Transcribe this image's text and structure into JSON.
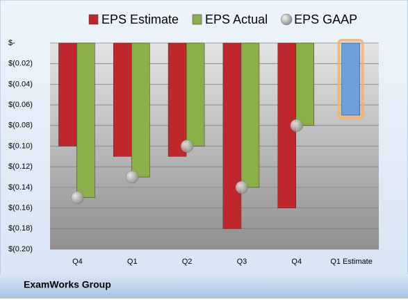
{
  "chart_data": {
    "type": "bar",
    "categories": [
      "Q4",
      "Q1",
      "Q2",
      "Q3",
      "Q4",
      "Q1 Estimate"
    ],
    "series": [
      {
        "name": "EPS Estimate",
        "color": "#c0272d",
        "point_colors": [
          "#c0272d",
          "#c0272d",
          "#c0272d",
          "#c0272d",
          "#c0272d",
          "#6f9fd8"
        ],
        "values": [
          -0.1,
          -0.11,
          -0.11,
          -0.18,
          -0.16,
          -0.07
        ]
      },
      {
        "name": "EPS Actual",
        "color": "#8bb04a",
        "values": [
          -0.15,
          -0.13,
          -0.1,
          -0.14,
          -0.08,
          null
        ]
      },
      {
        "name": "EPS GAAP",
        "color": "#a6a6a6",
        "marker": "circle",
        "values": [
          -0.15,
          -0.13,
          -0.1,
          -0.14,
          -0.08,
          null
        ]
      }
    ],
    "ylim": [
      0,
      -0.2
    ],
    "yticks": [
      {
        "value": 0,
        "label": "$-"
      },
      {
        "value": -0.02,
        "label": "$(0.02)"
      },
      {
        "value": -0.04,
        "label": "$(0.04)"
      },
      {
        "value": -0.06,
        "label": "$(0.06)"
      },
      {
        "value": -0.08,
        "label": "$(0.08)"
      },
      {
        "value": -0.1,
        "label": "$(0.10)"
      },
      {
        "value": -0.12,
        "label": "$(0.12)"
      },
      {
        "value": -0.14,
        "label": "$(0.14)"
      },
      {
        "value": -0.16,
        "label": "$(0.16)"
      },
      {
        "value": -0.18,
        "label": "$(0.18)"
      },
      {
        "value": -0.2,
        "label": "$(0.20)"
      }
    ],
    "grid": true,
    "legend": "top",
    "footer": "ExamWorks Group"
  }
}
